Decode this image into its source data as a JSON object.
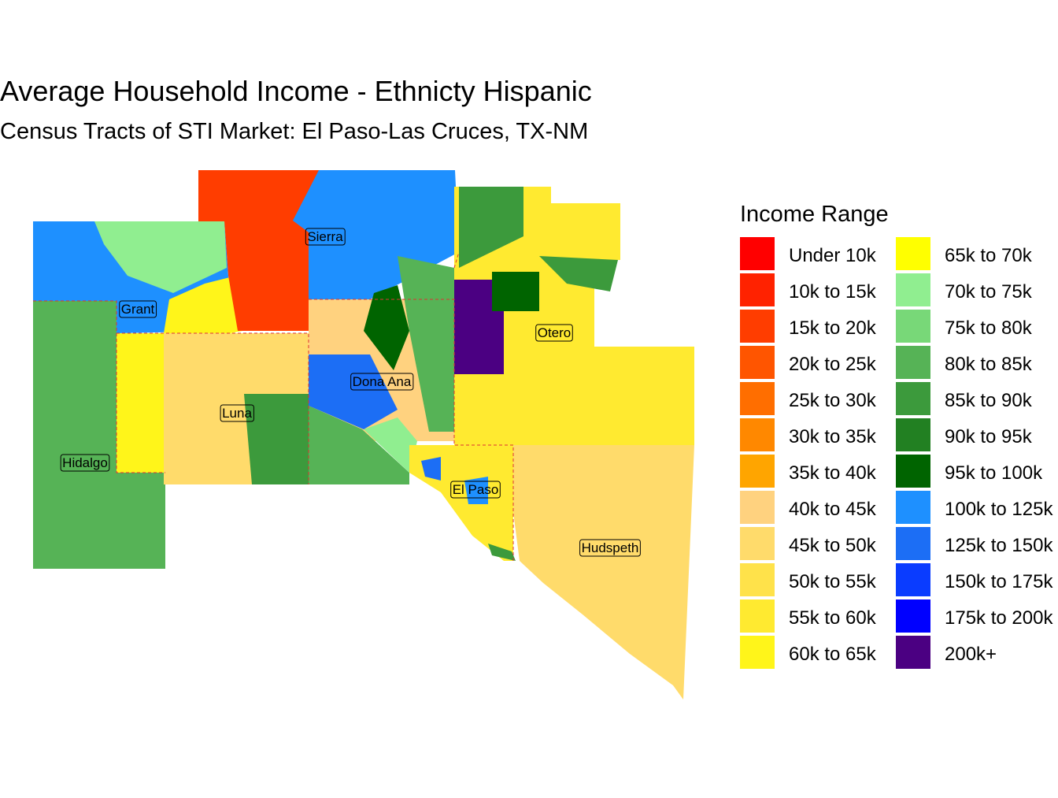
{
  "title": "Average Household Income - Ethnicty Hispanic",
  "subtitle": "Census Tracts of STI Market: El Paso-Las Cruces, TX-NM",
  "legend": {
    "title": "Income Range",
    "items": [
      {
        "label": "Under 10k",
        "color": "#FF0000"
      },
      {
        "label": "10k to 15k",
        "color": "#FF2200"
      },
      {
        "label": "15k to 20k",
        "color": "#FF3D00"
      },
      {
        "label": "20k to 25k",
        "color": "#FF5500"
      },
      {
        "label": "25k to 30k",
        "color": "#FF6E00"
      },
      {
        "label": "30k to 35k",
        "color": "#FF8800"
      },
      {
        "label": "35k to 40k",
        "color": "#FFA500"
      },
      {
        "label": "40k to 45k",
        "color": "#FFD27F"
      },
      {
        "label": "45k to 50k",
        "color": "#FFDB6B"
      },
      {
        "label": "50k to 55k",
        "color": "#FFE24A"
      },
      {
        "label": "55k to 60k",
        "color": "#FFEA30"
      },
      {
        "label": "60k to 65k",
        "color": "#FFF51A"
      },
      {
        "label": "65k to 70k",
        "color": "#FFFF00"
      },
      {
        "label": "70k to 75k",
        "color": "#90EE90"
      },
      {
        "label": "75k to 80k",
        "color": "#78D878"
      },
      {
        "label": "80k to 85k",
        "color": "#56B356"
      },
      {
        "label": "85k to 90k",
        "color": "#3C9A3C"
      },
      {
        "label": "90k to 95k",
        "color": "#228022"
      },
      {
        "label": "95k to 100k",
        "color": "#006400"
      },
      {
        "label": "100k to 125k",
        "color": "#1E90FF"
      },
      {
        "label": "125k to 150k",
        "color": "#1C6EF5"
      },
      {
        "label": "150k to 175k",
        "color": "#0A3CFF"
      },
      {
        "label": "175k to 200k",
        "color": "#0000FF"
      },
      {
        "label": "200k+",
        "color": "#4B0082"
      }
    ]
  },
  "counties": [
    "Sierra",
    "Grant",
    "Dona Ana",
    "Otero",
    "Luna",
    "Hidalgo",
    "El Paso",
    "Hudspeth"
  ]
}
